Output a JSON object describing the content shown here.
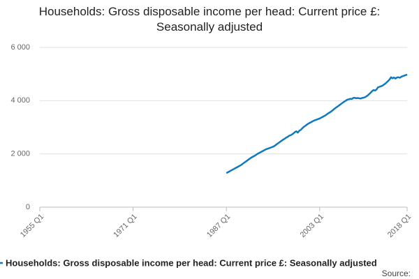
{
  "chart_data": {
    "type": "line",
    "title": "Households: Gross disposable income per head: Current price £: Seasonally adjusted",
    "source": "Source:",
    "xlim": [
      1955,
      2018
    ],
    "xticks": [
      {
        "value": 1955,
        "label": "1955 Q1"
      },
      {
        "value": 1971,
        "label": "1971 Q1"
      },
      {
        "value": 1987,
        "label": "1987 Q1"
      },
      {
        "value": 2003,
        "label": "2003 Q1"
      },
      {
        "value": 2018,
        "label": "2018 Q1"
      }
    ],
    "ylim": [
      0,
      6000
    ],
    "yticks": [
      {
        "value": 0,
        "label": "0"
      },
      {
        "value": 2000,
        "label": "2 000"
      },
      {
        "value": 4000,
        "label": "4 000"
      },
      {
        "value": 6000,
        "label": "6 000"
      }
    ],
    "grid": true,
    "legend": "bottom",
    "x": [
      1987,
      1987.25,
      1987.5,
      1987.75,
      1988,
      1988.25,
      1988.5,
      1988.75,
      1989,
      1989.25,
      1989.5,
      1989.75,
      1990,
      1990.25,
      1990.5,
      1990.75,
      1991,
      1991.25,
      1991.5,
      1991.75,
      1992,
      1992.25,
      1992.5,
      1992.75,
      1993,
      1993.25,
      1993.5,
      1993.75,
      1994,
      1994.25,
      1994.5,
      1994.75,
      1995,
      1995.25,
      1995.5,
      1995.75,
      1996,
      1996.25,
      1996.5,
      1996.75,
      1997,
      1997.25,
      1997.5,
      1997.75,
      1998,
      1998.25,
      1998.5,
      1998.75,
      1999,
      1999.25,
      1999.5,
      1999.75,
      2000,
      2000.25,
      2000.5,
      2000.75,
      2001,
      2001.25,
      2001.5,
      2001.75,
      2002,
      2002.25,
      2002.5,
      2002.75,
      2003,
      2003.25,
      2003.5,
      2003.75,
      2004,
      2004.25,
      2004.5,
      2004.75,
      2005,
      2005.25,
      2005.5,
      2005.75,
      2006,
      2006.25,
      2006.5,
      2006.75,
      2007,
      2007.25,
      2007.5,
      2007.75,
      2008,
      2008.25,
      2008.5,
      2008.75,
      2009,
      2009.25,
      2009.5,
      2009.75,
      2010,
      2010.25,
      2010.5,
      2010.75,
      2011,
      2011.25,
      2011.5,
      2011.75,
      2012,
      2012.25,
      2012.5,
      2012.75,
      2013,
      2013.25,
      2013.5,
      2013.75,
      2014,
      2014.25,
      2014.5,
      2014.75,
      2015,
      2015.25,
      2015.5,
      2015.75,
      2016,
      2016.25,
      2016.5,
      2016.75,
      2017,
      2017.25,
      2017.5,
      2017.75,
      2018
    ],
    "series": [
      {
        "name": "Households: Gross disposable income per head: Current price £: Seasonally adjusted",
        "color": "#0f7ac0",
        "values": [
          1280,
          1310,
          1340,
          1370,
          1400,
          1430,
          1460,
          1490,
          1520,
          1550,
          1580,
          1620,
          1660,
          1700,
          1740,
          1780,
          1820,
          1860,
          1890,
          1920,
          1950,
          1990,
          2020,
          2050,
          2080,
          2110,
          2140,
          2170,
          2190,
          2210,
          2230,
          2250,
          2270,
          2300,
          2340,
          2380,
          2420,
          2460,
          2500,
          2540,
          2570,
          2610,
          2640,
          2680,
          2700,
          2730,
          2770,
          2820,
          2850,
          2800,
          2870,
          2900,
          2960,
          3010,
          3050,
          3090,
          3130,
          3160,
          3190,
          3220,
          3250,
          3270,
          3290,
          3310,
          3330,
          3360,
          3390,
          3420,
          3450,
          3490,
          3530,
          3560,
          3600,
          3640,
          3690,
          3730,
          3770,
          3810,
          3850,
          3890,
          3930,
          3970,
          4000,
          4040,
          4050,
          4070,
          4060,
          4100,
          4110,
          4090,
          4100,
          4090,
          4080,
          4100,
          4110,
          4130,
          4160,
          4200,
          4250,
          4300,
          4360,
          4400,
          4380,
          4420,
          4500,
          4520,
          4540,
          4560,
          4600,
          4640,
          4690,
          4740,
          4800,
          4880,
          4840,
          4870,
          4830,
          4870,
          4880,
          4860,
          4900,
          4920,
          4940,
          4960,
          4980
        ]
      }
    ]
  }
}
